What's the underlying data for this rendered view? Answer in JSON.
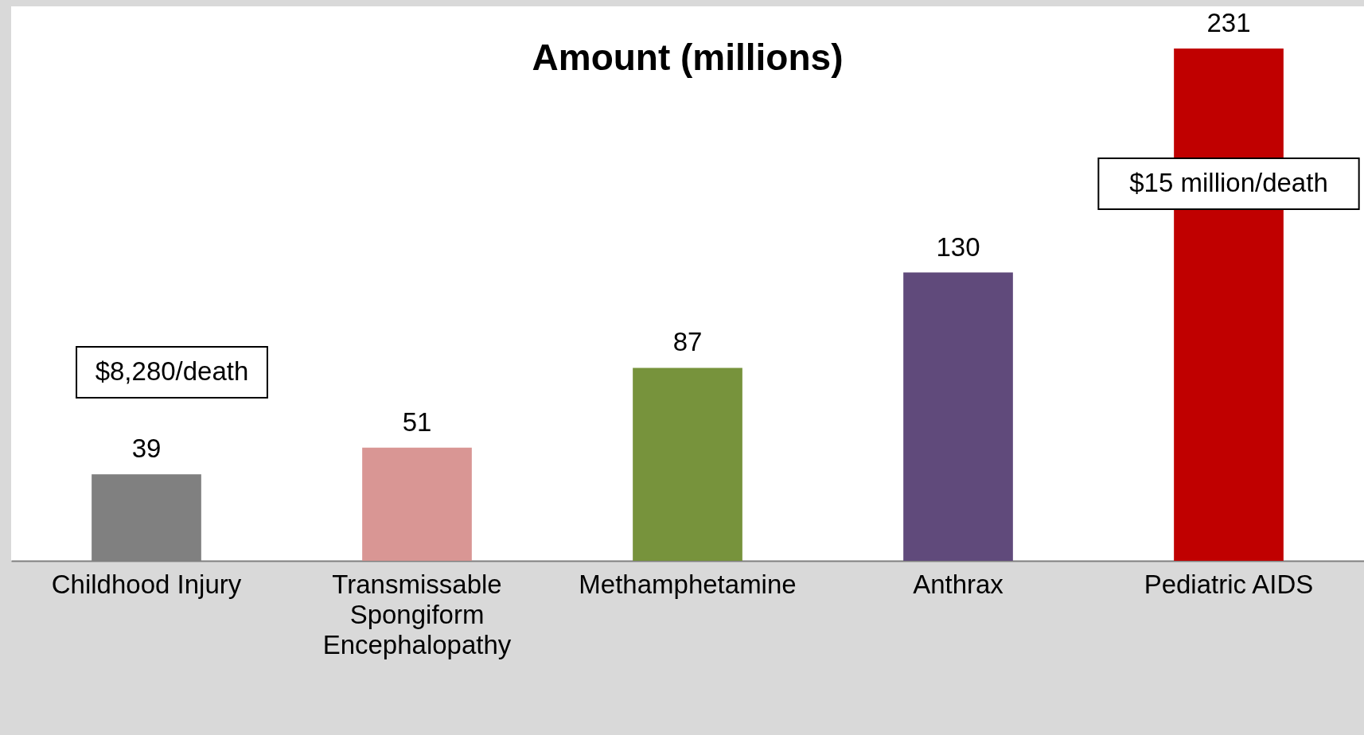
{
  "chart_data": {
    "type": "bar",
    "title": "Amount (millions)",
    "categories": [
      "Childhood Injury",
      "Transmissable Spongiform Encephalopathy",
      "Methamphetamine",
      "Anthrax",
      "Pediatric AIDS"
    ],
    "values": [
      39,
      51,
      87,
      130,
      231
    ],
    "colors": [
      "#808080",
      "#d99694",
      "#77933c",
      "#604a7b",
      "#c00000"
    ],
    "data_labels": true,
    "annotations": [
      "$8,280/death",
      "$15 million/death"
    ]
  }
}
